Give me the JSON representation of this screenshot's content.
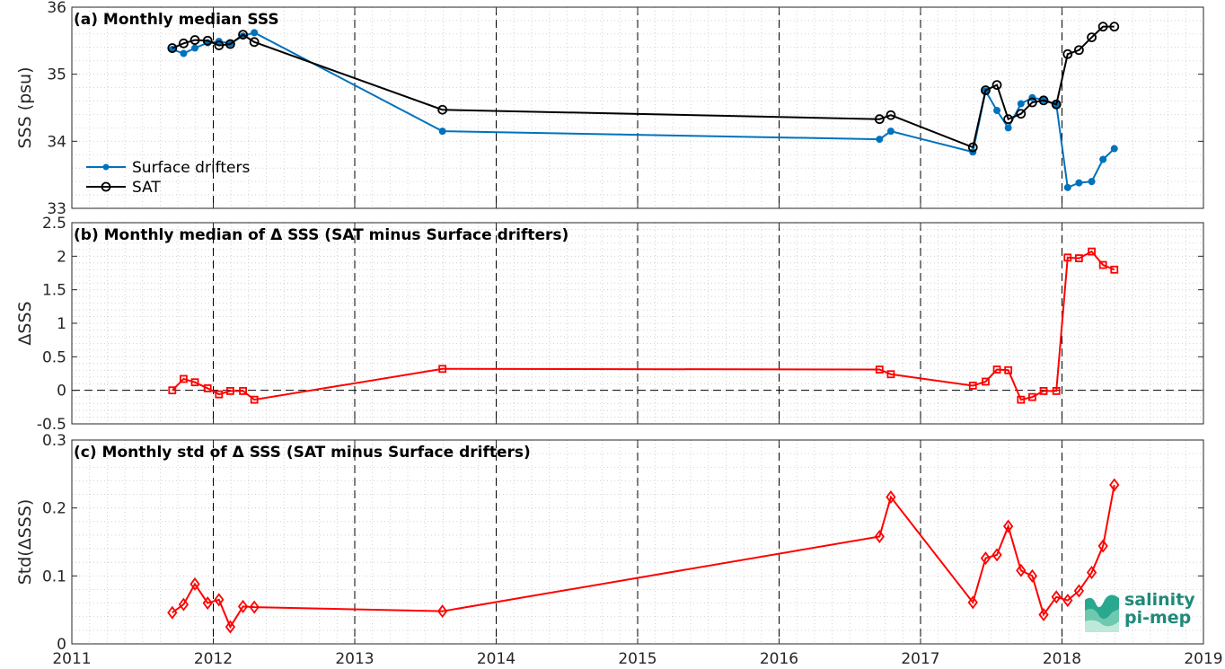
{
  "chart_data": [
    {
      "type": "line",
      "title": "(a) Monthly median SSS",
      "ylabel": "SSS (psu)",
      "ylim": [
        33,
        36
      ],
      "yticks": [
        "33",
        "34",
        "35",
        "36"
      ],
      "xlim": [
        2011,
        2019
      ],
      "legend_location": "lower-left",
      "grid": true,
      "series": [
        {
          "name": "Surface drifters",
          "color": "#0072BD",
          "marker": "dot",
          "points": [
            [
              2011.71,
              35.37
            ],
            [
              2011.79,
              35.31
            ],
            [
              2011.87,
              35.39
            ],
            [
              2011.96,
              35.47
            ],
            [
              2012.04,
              35.49
            ],
            [
              2012.12,
              35.46
            ],
            [
              2012.21,
              35.57
            ],
            [
              2012.29,
              35.62
            ],
            [
              2013.62,
              34.15
            ],
            [
              2016.71,
              34.03
            ],
            [
              2016.79,
              34.15
            ],
            [
              2017.37,
              33.84
            ],
            [
              2017.46,
              34.75
            ],
            [
              2017.54,
              34.46
            ],
            [
              2017.62,
              34.2
            ],
            [
              2017.71,
              34.56
            ],
            [
              2017.79,
              34.65
            ],
            [
              2017.87,
              34.62
            ],
            [
              2017.96,
              34.55
            ],
            [
              2018.04,
              33.31
            ],
            [
              2018.12,
              33.38
            ],
            [
              2018.21,
              33.4
            ],
            [
              2018.29,
              33.73
            ],
            [
              2018.37,
              33.89
            ]
          ]
        },
        {
          "name": "SAT",
          "color": "#000000",
          "marker": "circle",
          "points": [
            [
              2011.71,
              35.39
            ],
            [
              2011.79,
              35.46
            ],
            [
              2011.87,
              35.51
            ],
            [
              2011.96,
              35.5
            ],
            [
              2012.04,
              35.43
            ],
            [
              2012.12,
              35.45
            ],
            [
              2012.21,
              35.59
            ],
            [
              2012.29,
              35.48
            ],
            [
              2013.62,
              34.47
            ],
            [
              2016.71,
              34.33
            ],
            [
              2016.79,
              34.39
            ],
            [
              2017.37,
              33.91
            ],
            [
              2017.46,
              34.76
            ],
            [
              2017.54,
              34.84
            ],
            [
              2017.62,
              34.33
            ],
            [
              2017.71,
              34.41
            ],
            [
              2017.79,
              34.58
            ],
            [
              2017.87,
              34.61
            ],
            [
              2017.96,
              34.55
            ],
            [
              2018.04,
              35.3
            ],
            [
              2018.12,
              35.36
            ],
            [
              2018.21,
              35.55
            ],
            [
              2018.29,
              35.71
            ],
            [
              2018.37,
              35.71
            ]
          ]
        }
      ]
    },
    {
      "type": "line",
      "title": "(b) Monthly median of Δ SSS (SAT minus Surface drifters)",
      "ylabel": "ΔSSS",
      "ylim": [
        -0.5,
        2.5
      ],
      "yticks": [
        "-0.5",
        "0",
        "0.5",
        "1",
        "1.5",
        "2",
        "2.5"
      ],
      "xlim": [
        2011,
        2019
      ],
      "zero_line": true,
      "grid": true,
      "series": [
        {
          "color": "#FF0000",
          "marker": "square",
          "points": [
            [
              2011.71,
              0.0
            ],
            [
              2011.79,
              0.17
            ],
            [
              2011.87,
              0.12
            ],
            [
              2011.96,
              0.03
            ],
            [
              2012.04,
              -0.06
            ],
            [
              2012.12,
              -0.01
            ],
            [
              2012.21,
              -0.01
            ],
            [
              2012.29,
              -0.14
            ],
            [
              2013.62,
              0.32
            ],
            [
              2016.71,
              0.31
            ],
            [
              2016.79,
              0.24
            ],
            [
              2017.37,
              0.07
            ],
            [
              2017.46,
              0.13
            ],
            [
              2017.54,
              0.31
            ],
            [
              2017.62,
              0.3
            ],
            [
              2017.71,
              -0.14
            ],
            [
              2017.79,
              -0.1
            ],
            [
              2017.87,
              -0.01
            ],
            [
              2017.96,
              -0.01
            ],
            [
              2018.04,
              1.98
            ],
            [
              2018.12,
              1.97
            ],
            [
              2018.21,
              2.07
            ],
            [
              2018.29,
              1.87
            ],
            [
              2018.37,
              1.8
            ]
          ]
        }
      ]
    },
    {
      "type": "line",
      "title": "(c) Monthly std of Δ SSS (SAT minus Surface drifters)",
      "ylabel": "Std(ΔSSS)",
      "ylim": [
        0,
        0.3
      ],
      "yticks": [
        "0",
        "0.1",
        "0.2",
        "0.3"
      ],
      "xlim": [
        2011,
        2019
      ],
      "xticks": [
        "2011",
        "2012",
        "2013",
        "2014",
        "2015",
        "2016",
        "2017",
        "2018",
        "2019"
      ],
      "grid": true,
      "series": [
        {
          "color": "#FF0000",
          "marker": "diamond",
          "points": [
            [
              2011.71,
              0.046
            ],
            [
              2011.79,
              0.058
            ],
            [
              2011.87,
              0.088
            ],
            [
              2011.96,
              0.06
            ],
            [
              2012.04,
              0.065
            ],
            [
              2012.12,
              0.025
            ],
            [
              2012.21,
              0.055
            ],
            [
              2012.29,
              0.054
            ],
            [
              2013.62,
              0.048
            ],
            [
              2016.71,
              0.158
            ],
            [
              2016.79,
              0.216
            ],
            [
              2017.37,
              0.061
            ],
            [
              2017.46,
              0.126
            ],
            [
              2017.54,
              0.131
            ],
            [
              2017.62,
              0.173
            ],
            [
              2017.71,
              0.108
            ],
            [
              2017.79,
              0.1
            ],
            [
              2017.87,
              0.043
            ],
            [
              2017.96,
              0.069
            ],
            [
              2018.04,
              0.064
            ],
            [
              2018.12,
              0.078
            ],
            [
              2018.21,
              0.105
            ],
            [
              2018.29,
              0.144
            ],
            [
              2018.37,
              0.234
            ]
          ]
        }
      ]
    }
  ],
  "logo": {
    "line1": "salinity",
    "line2": "pi-mep",
    "color": "#1f8a7a"
  }
}
